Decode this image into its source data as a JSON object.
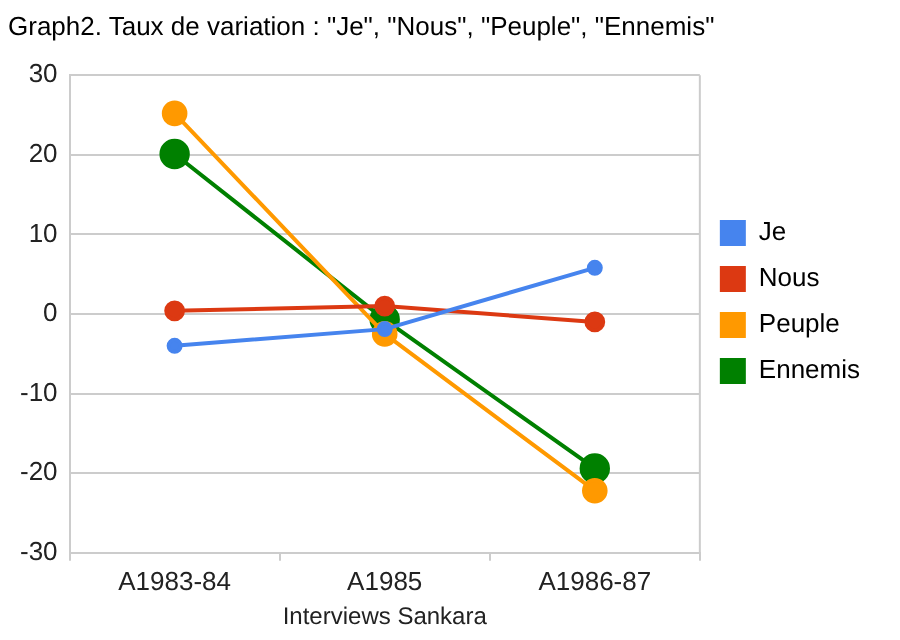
{
  "chart_data": {
    "type": "line",
    "title": "Graph2. Taux de variation : \"Je\", \"Nous\", \"Peuple\", \"Ennemis\"",
    "categories": [
      "A1983-84",
      "A1985",
      "A1986-87"
    ],
    "series": [
      {
        "name": "Je",
        "color": "#4684ee",
        "values": [
          -4.0,
          -1.9,
          5.8
        ]
      },
      {
        "name": "Nous",
        "color": "#dc3912",
        "values": [
          0.4,
          1.0,
          -1.0
        ]
      },
      {
        "name": "Peuple",
        "color": "#ff9900",
        "values": [
          25.2,
          -2.5,
          -22.2
        ]
      },
      {
        "name": "Ennemis",
        "color": "#008000",
        "values": [
          20.1,
          -0.7,
          -19.4
        ]
      }
    ],
    "ylim": [
      -30,
      30
    ],
    "yticks": [
      -30,
      -20,
      -10,
      0,
      10,
      20,
      30
    ],
    "grid": "y",
    "legend": "right",
    "marker": "circle",
    "line_style": "solid",
    "annotations": [
      "Interviews Sankara"
    ]
  }
}
